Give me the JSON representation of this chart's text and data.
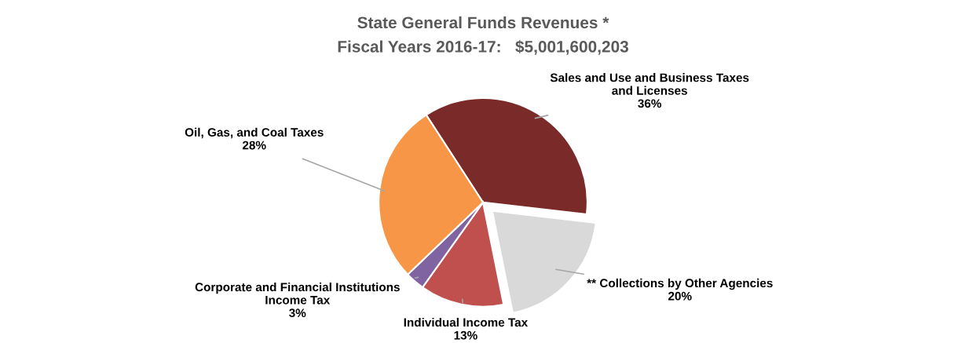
{
  "chart_data": {
    "type": "pie",
    "title": "State General Funds Revenues *",
    "subtitle": "Fiscal Years 2016-17:   $5,001,600,203",
    "categories": [
      "Sales and Use and Business Taxes\nand Licenses",
      "** Collections by Other Agencies",
      "Individual Income Tax",
      "Corporate and Financial Institutions\nIncome Tax",
      "Oil, Gas, and Coal Taxes"
    ],
    "values": [
      36,
      20,
      13,
      3,
      28
    ],
    "value_labels": [
      "36%",
      "20%",
      "13%",
      "3%",
      "28%"
    ],
    "colors": [
      "#7b2a2a",
      "#d9d9d9",
      "#c0504d",
      "#8064a2",
      "#f79646"
    ]
  }
}
